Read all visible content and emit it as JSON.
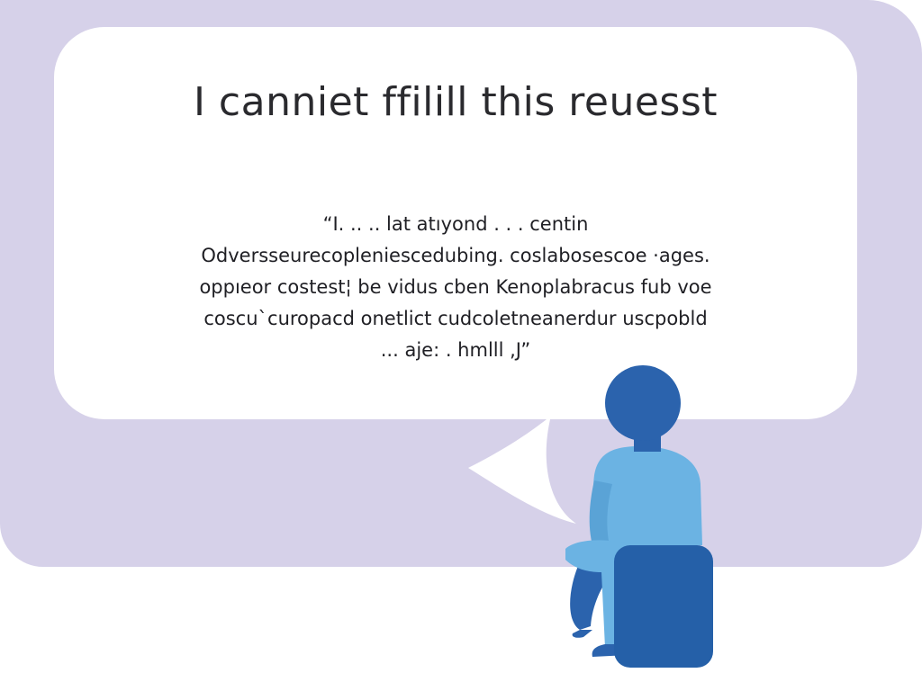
{
  "bubble": {
    "headline": "I canniet ffilill this reuesst",
    "lines": [
      "“I.  .. ..  lat  atıyond   . . .  centin",
      "Odversseurecopleniescedubing.  coslabosescoe ·ages.",
      "oppıeor costest¦ be vidus cben Kenoplabracus fub voe",
      "coscu`curopacd onetlict cudcoletneanerdur uscpobld",
      "...  aje:   .  hmlll  ,J”"
    ]
  },
  "colors": {
    "backdrop": "#d6d1e9",
    "bubble": "#ffffff",
    "head": "#2b63ad",
    "body": "#6bb3e3",
    "seat": "#2560a8"
  },
  "icons": {
    "person": "person-sitting-illustration",
    "seat": "seat-block"
  }
}
